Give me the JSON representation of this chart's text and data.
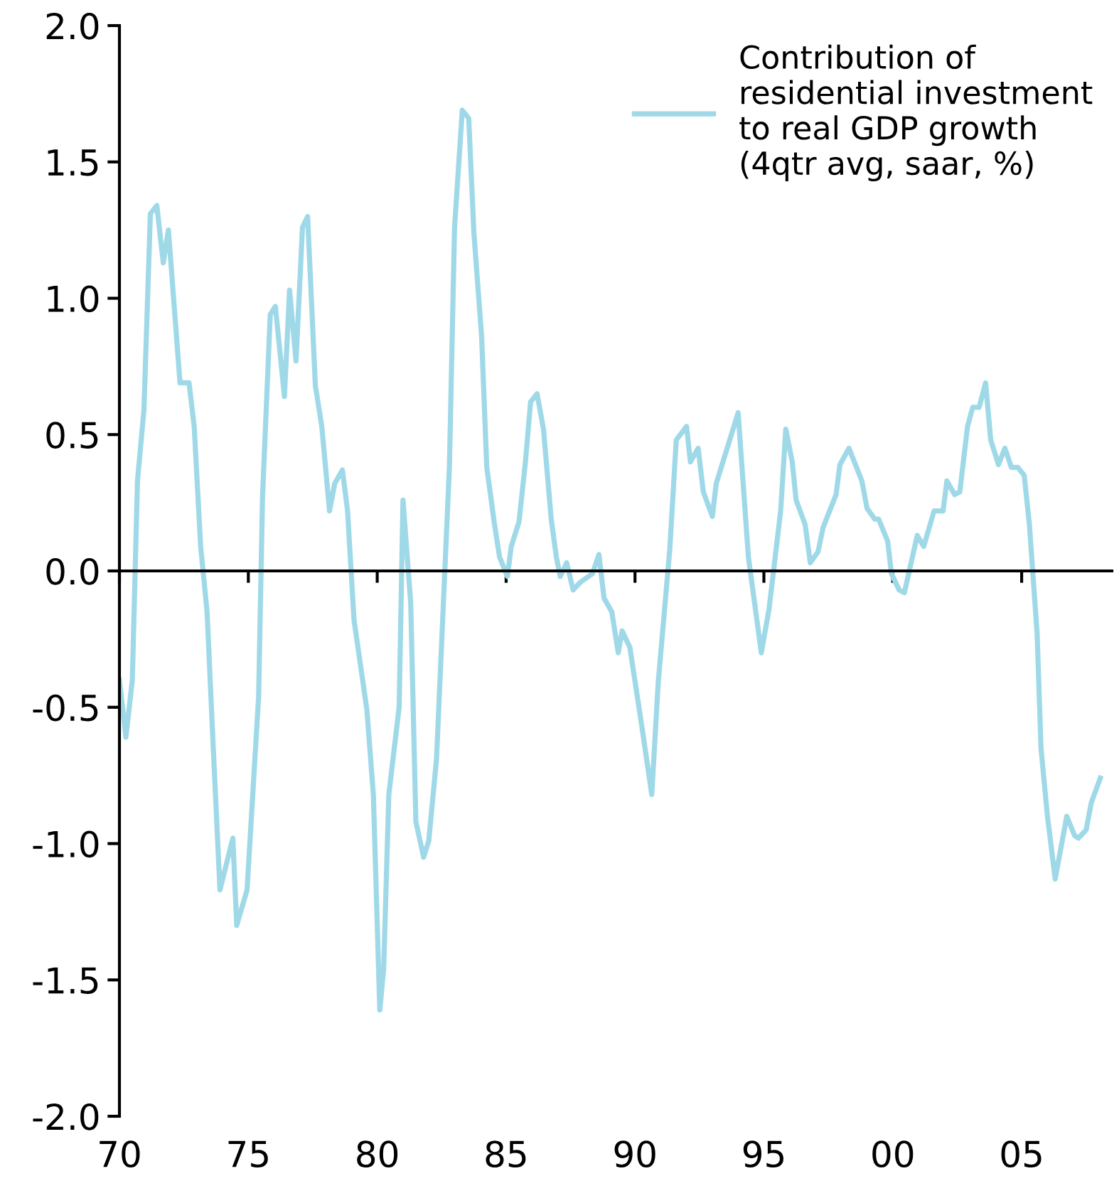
{
  "chart_data": {
    "type": "line",
    "xlim": [
      1970,
      2008.5
    ],
    "ylim": [
      -2,
      2
    ],
    "xticks": [
      {
        "value": 1970,
        "label": "70"
      },
      {
        "value": 1975,
        "label": "75"
      },
      {
        "value": 1980,
        "label": "80"
      },
      {
        "value": 1985,
        "label": "85"
      },
      {
        "value": 1990,
        "label": "90"
      },
      {
        "value": 1995,
        "label": "95"
      },
      {
        "value": 2000,
        "label": "00"
      },
      {
        "value": 2005,
        "label": "05"
      }
    ],
    "yticks": [
      {
        "value": 2,
        "label": "2.0"
      },
      {
        "value": 1.5,
        "label": "1.5"
      },
      {
        "value": 1,
        "label": "1.0"
      },
      {
        "value": 0.5,
        "label": "0.5"
      },
      {
        "value": 0,
        "label": "0.0"
      },
      {
        "value": -0.5,
        "label": "-0.5"
      },
      {
        "value": -1,
        "label": "-1.0"
      },
      {
        "value": -1.5,
        "label": "-1.5"
      },
      {
        "value": -2,
        "label": "-2.0"
      }
    ],
    "legend": "top right",
    "marker": "none",
    "line_style": "solid",
    "series": [
      {
        "name": "Contribution of\nresidential investment\nto real GDP growth\n(4qtr avg, saar, %)",
        "color": "#9fd9e8",
        "x": [
          1970.0,
          1970.25,
          1970.5,
          1970.7,
          1970.95,
          1971.2,
          1971.45,
          1971.7,
          1971.9,
          1972.35,
          1972.7,
          1972.9,
          1973.15,
          1973.4,
          1973.65,
          1973.9,
          1974.4,
          1974.55,
          1974.95,
          1975.4,
          1975.55,
          1975.85,
          1976.05,
          1976.4,
          1976.6,
          1976.85,
          1977.1,
          1977.3,
          1977.6,
          1977.85,
          1978.15,
          1978.35,
          1978.65,
          1978.85,
          1979.1,
          1979.6,
          1979.85,
          1980.1,
          1980.25,
          1980.45,
          1980.85,
          1981.0,
          1981.3,
          1981.5,
          1981.8,
          1982.0,
          1982.3,
          1982.8,
          1983.0,
          1983.3,
          1983.55,
          1983.75,
          1984.05,
          1984.25,
          1984.55,
          1984.75,
          1985.05,
          1985.2,
          1985.5,
          1985.75,
          1985.95,
          1986.2,
          1986.45,
          1986.75,
          1986.95,
          1987.1,
          1987.35,
          1987.6,
          1987.9,
          1988.35,
          1988.6,
          1988.8,
          1989.1,
          1989.35,
          1989.5,
          1989.8,
          1990.25,
          1990.65,
          1990.9,
          1991.35,
          1991.6,
          1992.0,
          1992.15,
          1992.45,
          1992.65,
          1993.0,
          1993.15,
          1994.0,
          1994.4,
          1994.9,
          1995.2,
          1995.65,
          1995.85,
          1996.1,
          1996.25,
          1996.6,
          1996.8,
          1997.1,
          1997.3,
          1997.8,
          1997.95,
          1998.3,
          1998.8,
          1999.0,
          1999.3,
          1999.45,
          1999.8,
          1999.95,
          2000.25,
          2000.45,
          2000.95,
          2001.2,
          2001.45,
          2001.6,
          2001.95,
          2002.1,
          2002.4,
          2002.6,
          2002.9,
          2003.1,
          2003.35,
          2003.6,
          2003.8,
          2004.1,
          2004.35,
          2004.6,
          2004.85,
          2005.1,
          2005.3,
          2005.6,
          2005.75,
          2006.0,
          2006.3,
          2006.75,
          2007.05,
          2007.2,
          2007.5,
          2007.7,
          2008.05
        ],
        "values": [
          -0.4,
          -0.61,
          -0.4,
          0.33,
          0.59,
          1.31,
          1.34,
          1.13,
          1.25,
          0.69,
          0.69,
          0.53,
          0.09,
          -0.15,
          -0.67,
          -1.17,
          -0.98,
          -1.3,
          -1.17,
          -0.46,
          0.27,
          0.94,
          0.97,
          0.64,
          1.03,
          0.77,
          1.26,
          1.3,
          0.68,
          0.53,
          0.22,
          0.32,
          0.37,
          0.22,
          -0.18,
          -0.51,
          -0.82,
          -1.61,
          -1.46,
          -0.82,
          -0.5,
          0.26,
          -0.12,
          -0.92,
          -1.05,
          -0.99,
          -0.69,
          0.38,
          1.26,
          1.69,
          1.66,
          1.24,
          0.86,
          0.38,
          0.17,
          0.05,
          -0.02,
          0.09,
          0.18,
          0.4,
          0.62,
          0.65,
          0.52,
          0.19,
          0.05,
          -0.02,
          0.03,
          -0.07,
          -0.04,
          -0.01,
          0.06,
          -0.1,
          -0.15,
          -0.3,
          -0.22,
          -0.28,
          -0.56,
          -0.82,
          -0.41,
          0.08,
          0.48,
          0.53,
          0.4,
          0.45,
          0.29,
          0.2,
          0.32,
          0.58,
          0.05,
          -0.3,
          -0.14,
          0.22,
          0.52,
          0.4,
          0.26,
          0.17,
          0.03,
          0.07,
          0.16,
          0.28,
          0.39,
          0.45,
          0.33,
          0.23,
          0.19,
          0.19,
          0.11,
          -0.01,
          -0.07,
          -0.08,
          0.13,
          0.09,
          0.17,
          0.22,
          0.22,
          0.33,
          0.28,
          0.29,
          0.53,
          0.6,
          0.6,
          0.69,
          0.48,
          0.39,
          0.45,
          0.38,
          0.38,
          0.35,
          0.17,
          -0.23,
          -0.65,
          -0.9,
          -1.13,
          -0.9,
          -0.97,
          -0.98,
          -0.95,
          -0.85,
          -0.76
        ]
      }
    ]
  }
}
